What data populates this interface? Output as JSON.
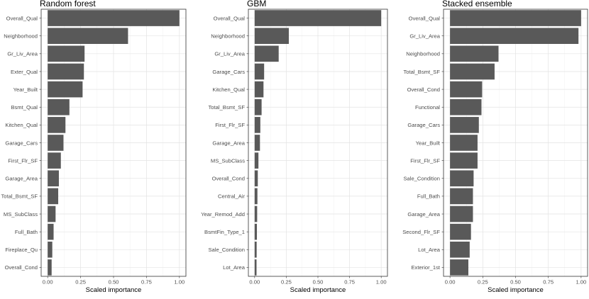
{
  "colors": {
    "bar": "#595959",
    "panel_border": "#333333",
    "grid_major": "#e3e3e3",
    "grid_minor": "#f2f2f2",
    "text": "#000000",
    "tick_text": "#4d4d4d"
  },
  "chart_data": [
    {
      "type": "bar",
      "orientation": "horizontal",
      "title": "Random forest",
      "xlabel": "Scaled importance",
      "ylabel": "",
      "xlim": [
        0,
        1
      ],
      "xticks": [
        "0.00",
        "0.25",
        "0.50",
        "0.75",
        "1.00"
      ],
      "categories": [
        "Overall_Qual",
        "Neighborhood",
        "Gr_Liv_Area",
        "Exter_Qual",
        "Year_Built",
        "Bsmt_Qual",
        "Kitchen_Qual",
        "Garage_Cars",
        "First_Flr_SF",
        "Garage_Area",
        "Total_Bsmt_SF",
        "MS_SubClass",
        "Full_Bath",
        "Fireplace_Qu",
        "Overall_Cond"
      ],
      "values": [
        1.0,
        0.61,
        0.28,
        0.275,
        0.265,
        0.165,
        0.135,
        0.12,
        0.1,
        0.085,
        0.08,
        0.06,
        0.045,
        0.035,
        0.03
      ]
    },
    {
      "type": "bar",
      "orientation": "horizontal",
      "title": "GBM",
      "xlabel": "Scaled importance",
      "ylabel": "",
      "xlim": [
        0,
        1
      ],
      "xticks": [
        "0.00",
        "0.25",
        "0.50",
        "0.75",
        "1.00"
      ],
      "categories": [
        "Overall_Qual",
        "Neighborhood",
        "Gr_Liv_Area",
        "Garage_Cars",
        "Kitchen_Qual",
        "Total_Bsmt_SF",
        "First_Flr_SF",
        "Garage_Area",
        "MS_SubClass",
        "Overall_Cond",
        "Central_Air",
        "Year_Remod_Add",
        "BsmtFin_Type_1",
        "Sale_Condition",
        "Lot_Area"
      ],
      "values": [
        1.0,
        0.27,
        0.19,
        0.075,
        0.07,
        0.055,
        0.045,
        0.042,
        0.03,
        0.025,
        0.022,
        0.02,
        0.018,
        0.016,
        0.015
      ]
    },
    {
      "type": "bar",
      "orientation": "horizontal",
      "title": "Stacked ensemble",
      "xlabel": "Scaled importance",
      "ylabel": "",
      "xlim": [
        0,
        1
      ],
      "xticks": [
        "0.00",
        "0.25",
        "0.50",
        "0.75",
        "1.00"
      ],
      "categories": [
        "Overall_Qual",
        "Gr_Liv_Area",
        "Neighborhood",
        "Total_Bsmt_SF",
        "Overall_Cond",
        "Functional",
        "Garage_Cars",
        "Year_Built",
        "First_Flr_SF",
        "Sale_Condition",
        "Full_Bath",
        "Garage_Area",
        "Second_Flr_SF",
        "Lot_Area",
        "Exterior_1st"
      ],
      "values": [
        1.0,
        0.98,
        0.37,
        0.34,
        0.245,
        0.24,
        0.22,
        0.21,
        0.21,
        0.18,
        0.175,
        0.175,
        0.16,
        0.15,
        0.14
      ]
    }
  ]
}
